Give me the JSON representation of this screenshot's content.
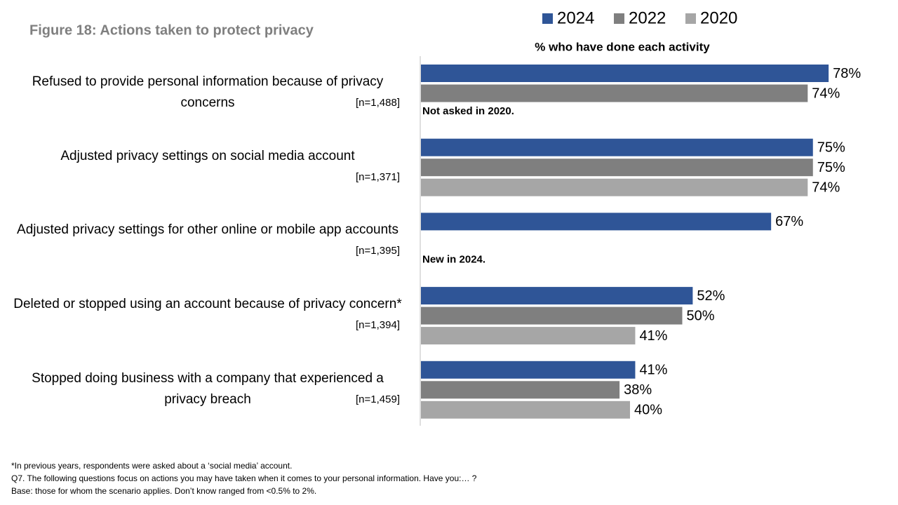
{
  "chart_data": {
    "type": "hbar",
    "title": "Figure 18: Actions taken to protect privacy",
    "subtitle": "% who have done each activity",
    "categories": [
      "Refused to provide personal information because of privacy concerns",
      "Adjusted privacy settings on social media account",
      "Adjusted privacy settings for other online or mobile app accounts",
      "Deleted or stopped using an account because of privacy concern*",
      "Stopped doing business with a company that experienced a privacy breach"
    ],
    "n_labels": [
      "[n=1,488]",
      "[n=1,371]",
      "[n=1,395]",
      "[n=1,394]",
      "[n=1,459]"
    ],
    "notes": [
      "Not asked in 2020.",
      null,
      "New in 2024.",
      null,
      null
    ],
    "series": [
      {
        "name": "2024",
        "color": "#2f5597",
        "values": [
          78,
          75,
          67,
          52,
          41
        ],
        "value_labels": [
          "78%",
          "75%",
          "67%",
          "52%",
          "41%"
        ]
      },
      {
        "name": "2022",
        "color": "#7f7f7f",
        "values": [
          74,
          75,
          null,
          50,
          38
        ],
        "value_labels": [
          "74%",
          "75%",
          null,
          "50%",
          "38%"
        ]
      },
      {
        "name": "2020",
        "color": "#a6a6a6",
        "values": [
          null,
          74,
          null,
          41,
          40
        ],
        "value_labels": [
          null,
          "74%",
          null,
          "41%",
          "40%"
        ]
      }
    ],
    "footnotes": [
      "*In previous years, respondents were asked about a ‘social media’ account.",
      "Q7. The following questions focus on actions you may have taken when it comes to your personal information. Have you:… ?",
      "Base: those for whom the scenario applies. Don’t know ranged from <0.5% to 2%."
    ]
  }
}
